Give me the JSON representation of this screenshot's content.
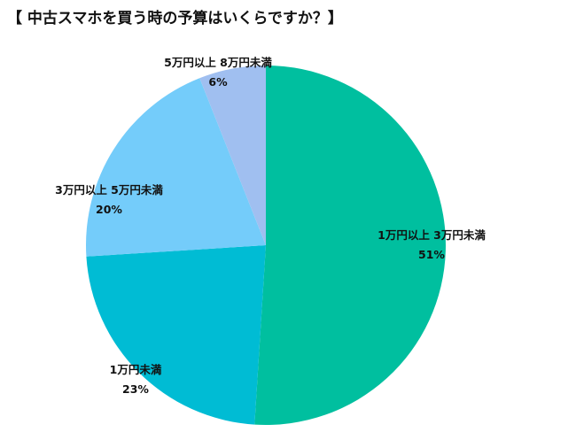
{
  "title": "【 中古スマホを買う時の予算はいくらですか？】",
  "chart_data": {
    "type": "pie",
    "title": "【 中古スマホを買う時の予算はいくらですか？】",
    "slices": [
      {
        "label": "1万円以上 3万円未満",
        "value": 51,
        "value_label": "51%",
        "color": "#00bf9f"
      },
      {
        "label": "1万円未満",
        "value": 23,
        "value_label": "23%",
        "color": "#00bcd4"
      },
      {
        "label": "3万円以上 5万円未満",
        "value": 20,
        "value_label": "20%",
        "color": "#74ccfa"
      },
      {
        "label": "5万円以上 8万円未満",
        "value": 6,
        "value_label": "6%",
        "color": "#a0bff0"
      }
    ],
    "start_angle": "12 o'clock",
    "direction": "clockwise",
    "legend": "none"
  }
}
